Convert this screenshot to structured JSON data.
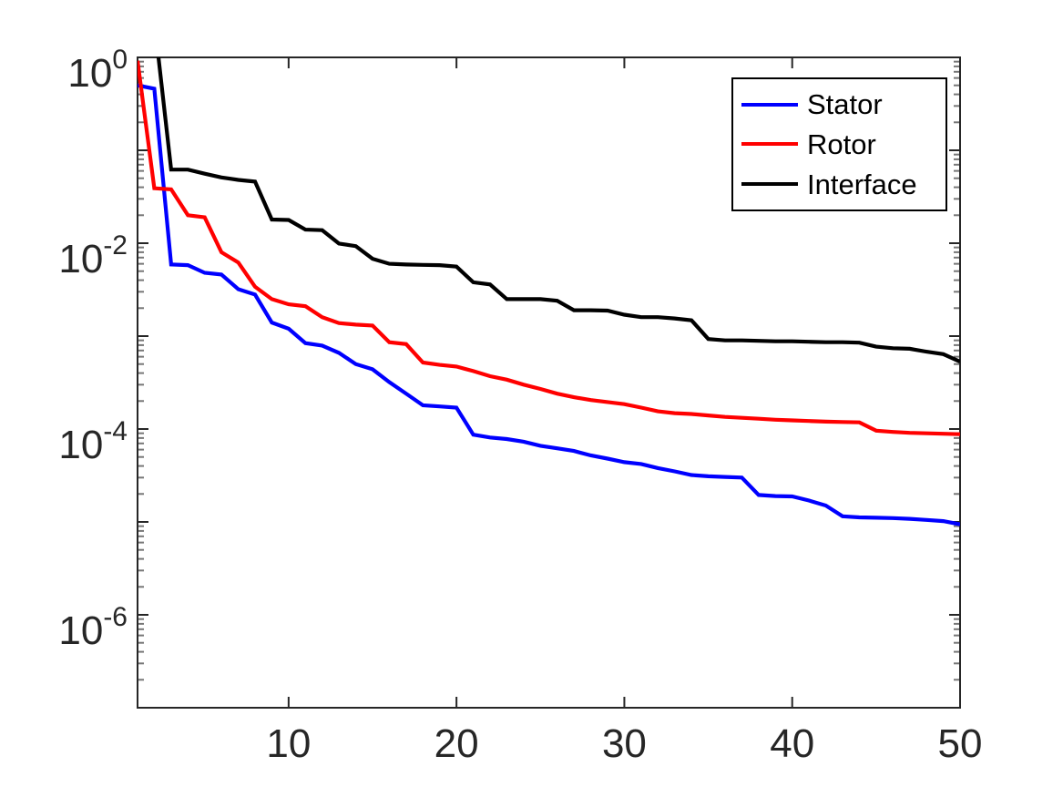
{
  "chart_data": {
    "type": "line",
    "y_scale": "log",
    "x_scale": "linear",
    "xlim": [
      1,
      50
    ],
    "ylim_exponents": [
      -7,
      0
    ],
    "x_ticks": [
      10,
      20,
      30,
      40,
      50
    ],
    "y_tick_label_exponents": [
      0,
      -2,
      -4,
      -6
    ],
    "y_tick_base": "10",
    "grid": "off",
    "box": "on",
    "axis_color": "#262626",
    "minor_tick_color": "#777777",
    "background_color": "#ffffff",
    "line_width": 4.2,
    "legend": {
      "position": "northeast",
      "border_color": "#000000",
      "entries": [
        "Stator",
        "Rotor",
        "Interface"
      ]
    },
    "x": [
      1,
      2,
      3,
      4,
      5,
      6,
      7,
      8,
      9,
      10,
      11,
      12,
      13,
      14,
      15,
      16,
      17,
      18,
      19,
      20,
      21,
      22,
      23,
      24,
      25,
      26,
      27,
      28,
      29,
      30,
      31,
      32,
      33,
      34,
      35,
      36,
      37,
      38,
      39,
      40,
      41,
      42,
      43,
      44,
      45,
      46,
      47,
      48,
      49,
      50
    ],
    "series": [
      {
        "name": "Stator",
        "color": "#0000ff",
        "values": [
          0.5,
          0.46,
          0.0059,
          0.0058,
          0.0048,
          0.0046,
          0.0032,
          0.0028,
          0.0014,
          0.0012,
          0.00084,
          0.00079,
          0.00066,
          0.0005,
          0.00044,
          0.00032,
          0.00024,
          0.00018,
          0.000175,
          0.00017,
          8.7e-05,
          8.1e-05,
          7.8e-05,
          7.3e-05,
          6.6e-05,
          6.2e-05,
          5.8e-05,
          5.2e-05,
          4.8e-05,
          4.4e-05,
          4.2e-05,
          3.8e-05,
          3.5e-05,
          3.2e-05,
          3.1e-05,
          3.05e-05,
          3e-05,
          1.95e-05,
          1.9e-05,
          1.88e-05,
          1.7e-05,
          1.5e-05,
          1.15e-05,
          1.12e-05,
          1.11e-05,
          1.1e-05,
          1.08e-05,
          1.05e-05,
          1.02e-05,
          9.4e-06
        ]
      },
      {
        "name": "Rotor",
        "color": "#ff0000",
        "values": [
          0.92,
          0.039,
          0.038,
          0.02,
          0.019,
          0.008,
          0.0062,
          0.0034,
          0.0025,
          0.0022,
          0.0021,
          0.0016,
          0.00138,
          0.00133,
          0.0013,
          0.00086,
          0.00082,
          0.00052,
          0.00049,
          0.00047,
          0.00042,
          0.00037,
          0.00034,
          0.0003,
          0.00027,
          0.00024,
          0.00022,
          0.000205,
          0.000195,
          0.000185,
          0.00017,
          0.000155,
          0.000148,
          0.000145,
          0.00014,
          0.000135,
          0.000132,
          0.000129,
          0.000126,
          0.000124,
          0.000122,
          0.00012,
          0.000119,
          0.000118,
          9.6e-05,
          9.3e-05,
          9.1e-05,
          9e-05,
          8.9e-05,
          8.8e-05
        ]
      },
      {
        "name": "Interface",
        "color": "#000000",
        "values": [
          5,
          2.5,
          0.062,
          0.062,
          0.056,
          0.051,
          0.048,
          0.046,
          0.018,
          0.0178,
          0.014,
          0.0138,
          0.0099,
          0.0093,
          0.0068,
          0.006,
          0.0059,
          0.00585,
          0.0058,
          0.0056,
          0.0038,
          0.0036,
          0.0025,
          0.0025,
          0.0025,
          0.0024,
          0.0019,
          0.0019,
          0.00188,
          0.0017,
          0.0016,
          0.0016,
          0.00155,
          0.00148,
          0.00093,
          0.0009,
          0.0009,
          0.00089,
          0.00088,
          0.00088,
          0.00087,
          0.00086,
          0.00086,
          0.00085,
          0.00077,
          0.00074,
          0.00073,
          0.00068,
          0.00064,
          0.00053
        ]
      }
    ]
  }
}
